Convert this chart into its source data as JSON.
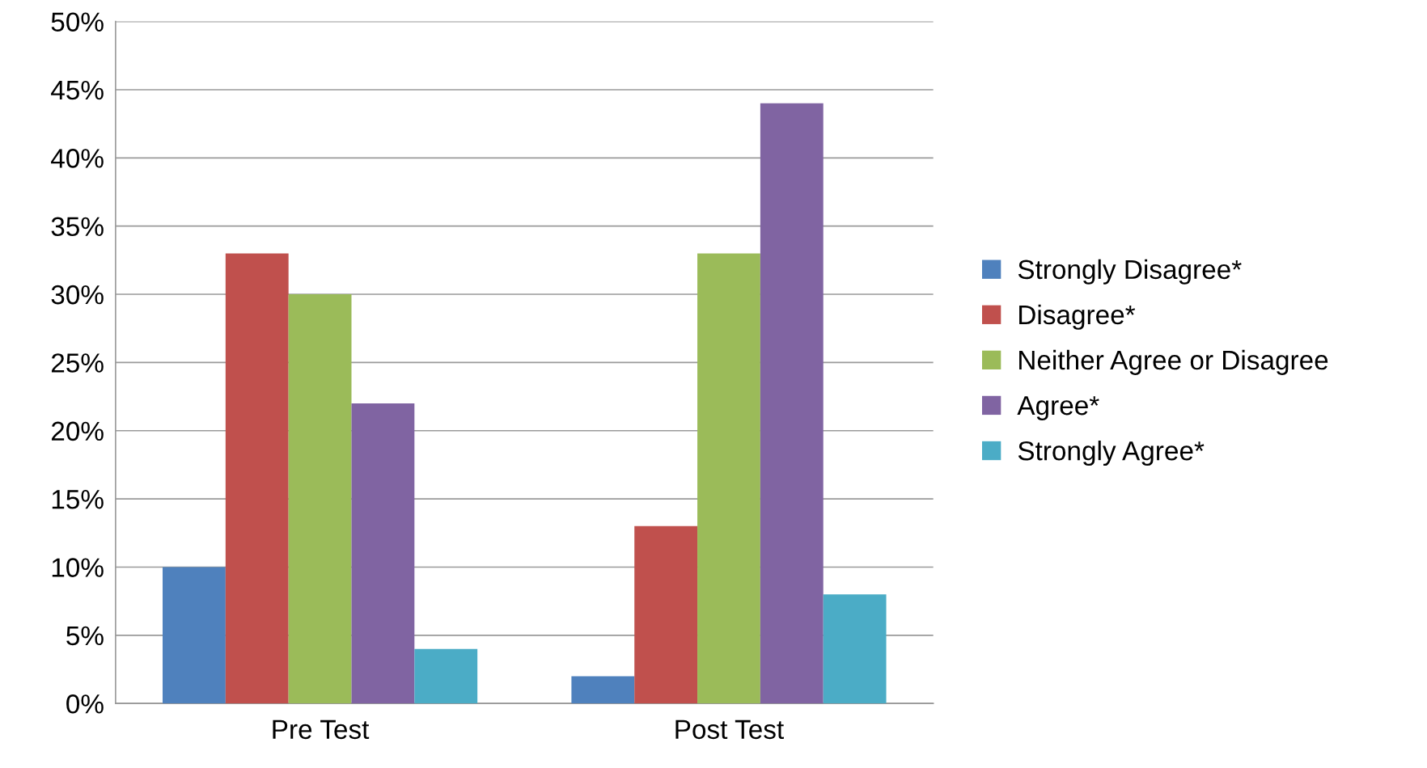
{
  "chart_data": {
    "type": "bar",
    "categories": [
      "Pre Test",
      "Post Test"
    ],
    "series": [
      {
        "name": "Strongly Disagree*",
        "color": "#4f81bd",
        "values": [
          10,
          2
        ]
      },
      {
        "name": "Disagree*",
        "color": "#c0504d",
        "values": [
          33,
          13
        ]
      },
      {
        "name": "Neither Agree or Disagree",
        "color": "#9bbb59",
        "values": [
          30,
          33
        ]
      },
      {
        "name": "Agree*",
        "color": "#8064a2",
        "values": [
          22,
          44
        ]
      },
      {
        "name": "Strongly Agree*",
        "color": "#4bacc6",
        "values": [
          4,
          8
        ]
      }
    ],
    "ylim": [
      0,
      50
    ],
    "yticks": [
      {
        "value": 0,
        "label": "0%"
      },
      {
        "value": 5,
        "label": "5%"
      },
      {
        "value": 10,
        "label": "10%"
      },
      {
        "value": 15,
        "label": "15%"
      },
      {
        "value": 20,
        "label": "20%"
      },
      {
        "value": 25,
        "label": "25%"
      },
      {
        "value": 30,
        "label": "30%"
      },
      {
        "value": 35,
        "label": "35%"
      },
      {
        "value": 40,
        "label": "40%"
      },
      {
        "value": 45,
        "label": "45%"
      },
      {
        "value": 50,
        "label": "50%"
      }
    ],
    "grid": "y",
    "legend": "right"
  }
}
